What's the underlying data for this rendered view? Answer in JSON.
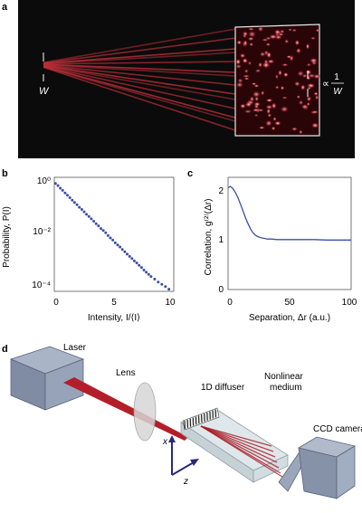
{
  "panel_a": {
    "label": "a",
    "width_label": "W",
    "proportional_label": "∝",
    "fraction_numerator": "1",
    "fraction_denominator": "W",
    "colors": {
      "background": "#0b0b0b",
      "beam": "#c0303a",
      "speckle_bright": "#ffe4e4"
    }
  },
  "panel_b": {
    "label": "b",
    "ylabel": "Probability, P(I)",
    "xlabel": "Intensity, I/⟨I⟩",
    "y_ticks": [
      "10⁰",
      "10⁻²",
      "10⁻⁴"
    ],
    "x_ticks": [
      "0",
      "5",
      "10"
    ]
  },
  "panel_c": {
    "label": "c",
    "ylabel": "Correlation, g⁽²⁾(Δr)",
    "xlabel": "Separation, Δr (a.u.)",
    "y_ticks": [
      "0",
      "1",
      "2"
    ],
    "x_ticks": [
      "0",
      "50",
      "100"
    ]
  },
  "chart_data": [
    {
      "type": "scatter",
      "panel": "b",
      "xlabel": "Intensity, I/⟨I⟩",
      "ylabel": "Probability, P(I)",
      "xlim": [
        0,
        10
      ],
      "ylim": [
        0.0001,
        1.5
      ],
      "y_scale": "log",
      "color": "#3a4fa3",
      "series": [
        {
          "x": [
            0.1,
            0.3,
            0.5,
            0.7,
            0.9,
            1.1,
            1.3,
            1.5,
            1.7,
            1.9,
            2.1,
            2.3,
            2.5,
            2.7,
            2.9,
            3.1,
            3.3,
            3.5,
            3.7,
            3.9,
            4.1,
            4.3,
            4.5,
            4.7,
            4.9,
            5.1,
            5.3,
            5.5,
            5.7,
            5.9,
            6.1,
            6.3,
            6.5,
            6.7,
            6.9,
            7.1,
            7.3,
            7.5,
            7.7,
            7.9,
            8.1,
            8.4,
            8.7,
            9.0,
            9.3,
            9.6
          ],
          "y": [
            0.9,
            0.75,
            0.6,
            0.5,
            0.4,
            0.33,
            0.27,
            0.22,
            0.18,
            0.15,
            0.12,
            0.1,
            0.082,
            0.066,
            0.055,
            0.045,
            0.037,
            0.03,
            0.025,
            0.02,
            0.017,
            0.014,
            0.011,
            0.009,
            0.0075,
            0.006,
            0.005,
            0.0042,
            0.0034,
            0.0028,
            0.0023,
            0.0019,
            0.0016,
            0.0013,
            0.0011,
            0.0009,
            0.00075,
            0.0006,
            0.0005,
            0.00042,
            0.00035,
            0.00028,
            0.00022,
            0.00018,
            0.00015,
            0.00012
          ]
        }
      ]
    },
    {
      "type": "line",
      "panel": "c",
      "xlabel": "Separation, Δr (a.u.)",
      "ylabel": "Correlation, g⁽²⁾(Δr)",
      "xlim": [
        0,
        100
      ],
      "ylim": [
        0,
        2.2
      ],
      "color": "#3a4fa3",
      "series": [
        {
          "x": [
            0,
            2,
            4,
            6,
            8,
            10,
            12,
            14,
            16,
            18,
            20,
            22,
            24,
            26,
            28,
            30,
            32,
            35,
            40,
            50,
            60,
            70,
            80,
            90,
            100
          ],
          "y": [
            2.0,
            2.02,
            1.98,
            1.9,
            1.8,
            1.68,
            1.55,
            1.42,
            1.3,
            1.2,
            1.12,
            1.07,
            1.04,
            1.02,
            1.01,
            1.0,
            0.99,
            0.99,
            0.98,
            0.98,
            0.98,
            0.98,
            0.97,
            0.97,
            0.97
          ]
        }
      ]
    }
  ],
  "panel_d": {
    "label": "d",
    "laser_label": "Laser",
    "lens_label": "Lens",
    "diffuser_label": "1D diffuser",
    "medium_label_1": "Nonlinear",
    "medium_label_2": "medium",
    "camera_label": "CCD camera",
    "axis_x_label": "x",
    "axis_z_label": "z",
    "colors": {
      "laser_body": "#8d9ab0",
      "beam": "#b41e28",
      "axis": "#2a2a7a"
    }
  }
}
